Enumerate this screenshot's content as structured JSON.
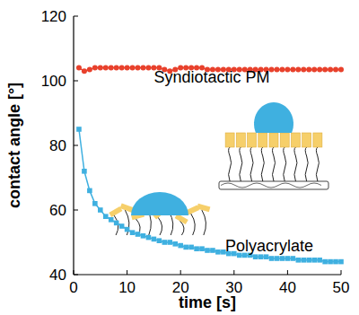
{
  "chart_data": {
    "type": "line",
    "x_label": "time [s]",
    "y_label": "contact angle [°]",
    "xlim": [
      0,
      50
    ],
    "ylim": [
      40,
      120
    ],
    "xticks": [
      0,
      10,
      20,
      30,
      40,
      50
    ],
    "yticks": [
      40,
      60,
      80,
      100,
      120
    ],
    "grid": false,
    "x": [
      1,
      2,
      3,
      4,
      5,
      6,
      7,
      8,
      9,
      10,
      11,
      12,
      13,
      14,
      15,
      16,
      17,
      18,
      19,
      20,
      21,
      22,
      23,
      24,
      25,
      26,
      27,
      28,
      29,
      30,
      31,
      32,
      33,
      34,
      35,
      36,
      37,
      38,
      39,
      40,
      41,
      42,
      43,
      44,
      45,
      46,
      47,
      48,
      49,
      50
    ],
    "series": [
      {
        "name": "Syndiotactic PM",
        "color": "#e8412c",
        "marker": "circle",
        "line_style": "solid",
        "values": [
          104,
          103,
          103.5,
          104,
          104,
          104,
          104,
          104,
          104,
          104,
          104,
          104,
          104,
          104,
          104,
          104,
          103.5,
          103,
          103.5,
          104,
          104,
          104,
          104,
          104,
          103.5,
          103.5,
          103.5,
          103.5,
          103.5,
          103.5,
          103.5,
          103.5,
          103.5,
          103.5,
          103.5,
          103.5,
          103.5,
          103.5,
          103.5,
          103.5,
          103.5,
          103.5,
          103.5,
          103.5,
          103.5,
          103.5,
          103.5,
          103.5,
          103.5,
          103.5
        ]
      },
      {
        "name": "Polyacrylate",
        "color": "#3fb0e0",
        "marker": "square",
        "line_style": "solid",
        "values": [
          85,
          72,
          66,
          62,
          60,
          58,
          57,
          56,
          55,
          54,
          53,
          52.5,
          52,
          51.5,
          51,
          50.5,
          50,
          50,
          49.5,
          49,
          48.5,
          48.5,
          48,
          48,
          47.5,
          47.5,
          47,
          47,
          46.5,
          46.5,
          46,
          46,
          46,
          45.5,
          45.5,
          45.5,
          45,
          45,
          45,
          45,
          45,
          44.5,
          44.5,
          44.5,
          44.5,
          44.5,
          44,
          44,
          44,
          44
        ]
      }
    ]
  }
}
